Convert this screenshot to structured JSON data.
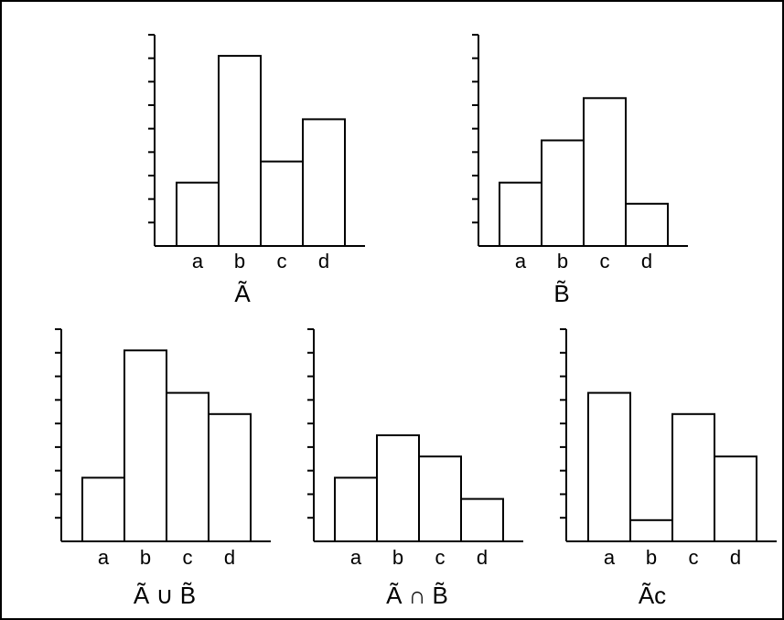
{
  "chart_data": [
    {
      "type": "bar",
      "caption": "Ã",
      "categories": [
        "a",
        "b",
        "c",
        "d"
      ],
      "values": [
        0.3,
        0.9,
        0.4,
        0.6
      ],
      "ylim": [
        0,
        1
      ],
      "y_ticks": 9,
      "grid": false
    },
    {
      "type": "bar",
      "caption": "B̃",
      "categories": [
        "a",
        "b",
        "c",
        "d"
      ],
      "values": [
        0.3,
        0.5,
        0.7,
        0.2
      ],
      "ylim": [
        0,
        1
      ],
      "y_ticks": 9,
      "grid": false
    },
    {
      "type": "bar",
      "caption": "Ã ∪ B̃",
      "categories": [
        "a",
        "b",
        "c",
        "d"
      ],
      "values": [
        0.3,
        0.9,
        0.7,
        0.6
      ],
      "ylim": [
        0,
        1
      ],
      "y_ticks": 9,
      "grid": false
    },
    {
      "type": "bar",
      "caption": "Ã ∩ B̃",
      "categories": [
        "a",
        "b",
        "c",
        "d"
      ],
      "values": [
        0.3,
        0.5,
        0.4,
        0.2
      ],
      "ylim": [
        0,
        1
      ],
      "y_ticks": 9,
      "grid": false
    },
    {
      "type": "bar",
      "caption": "Ãc",
      "categories": [
        "a",
        "b",
        "c",
        "d"
      ],
      "values": [
        0.7,
        0.1,
        0.6,
        0.4
      ],
      "ylim": [
        0,
        1
      ],
      "y_ticks": 9,
      "grid": false
    }
  ]
}
